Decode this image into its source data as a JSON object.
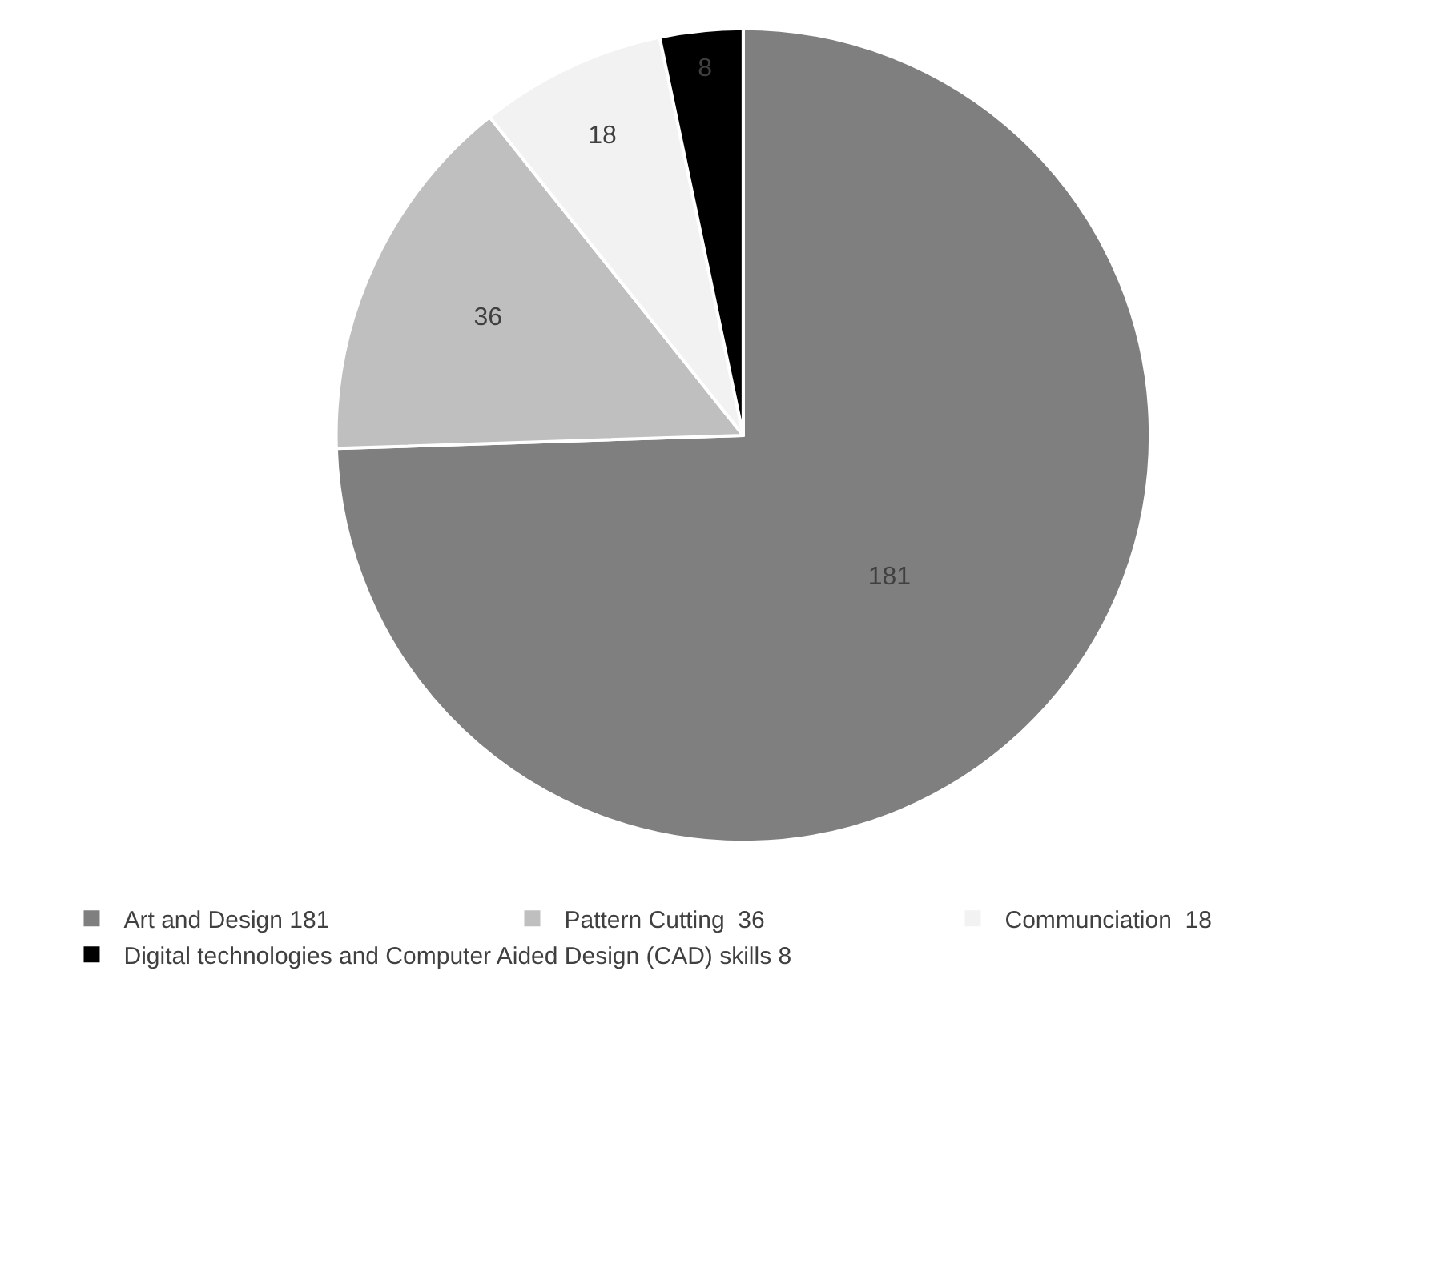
{
  "chart_data": {
    "type": "pie",
    "categories": [
      "Art and Design 181",
      "Pattern Cutting  36",
      "Communciation  18",
      "Digital technologies and Computer Aided Design (CAD) skills 8"
    ],
    "values": [
      181,
      36,
      18,
      8
    ],
    "colors": [
      "#7f7f7f",
      "#bfbfbf",
      "#f2f2f2",
      "#000000"
    ],
    "data_labels": true,
    "legend": "bottom"
  }
}
